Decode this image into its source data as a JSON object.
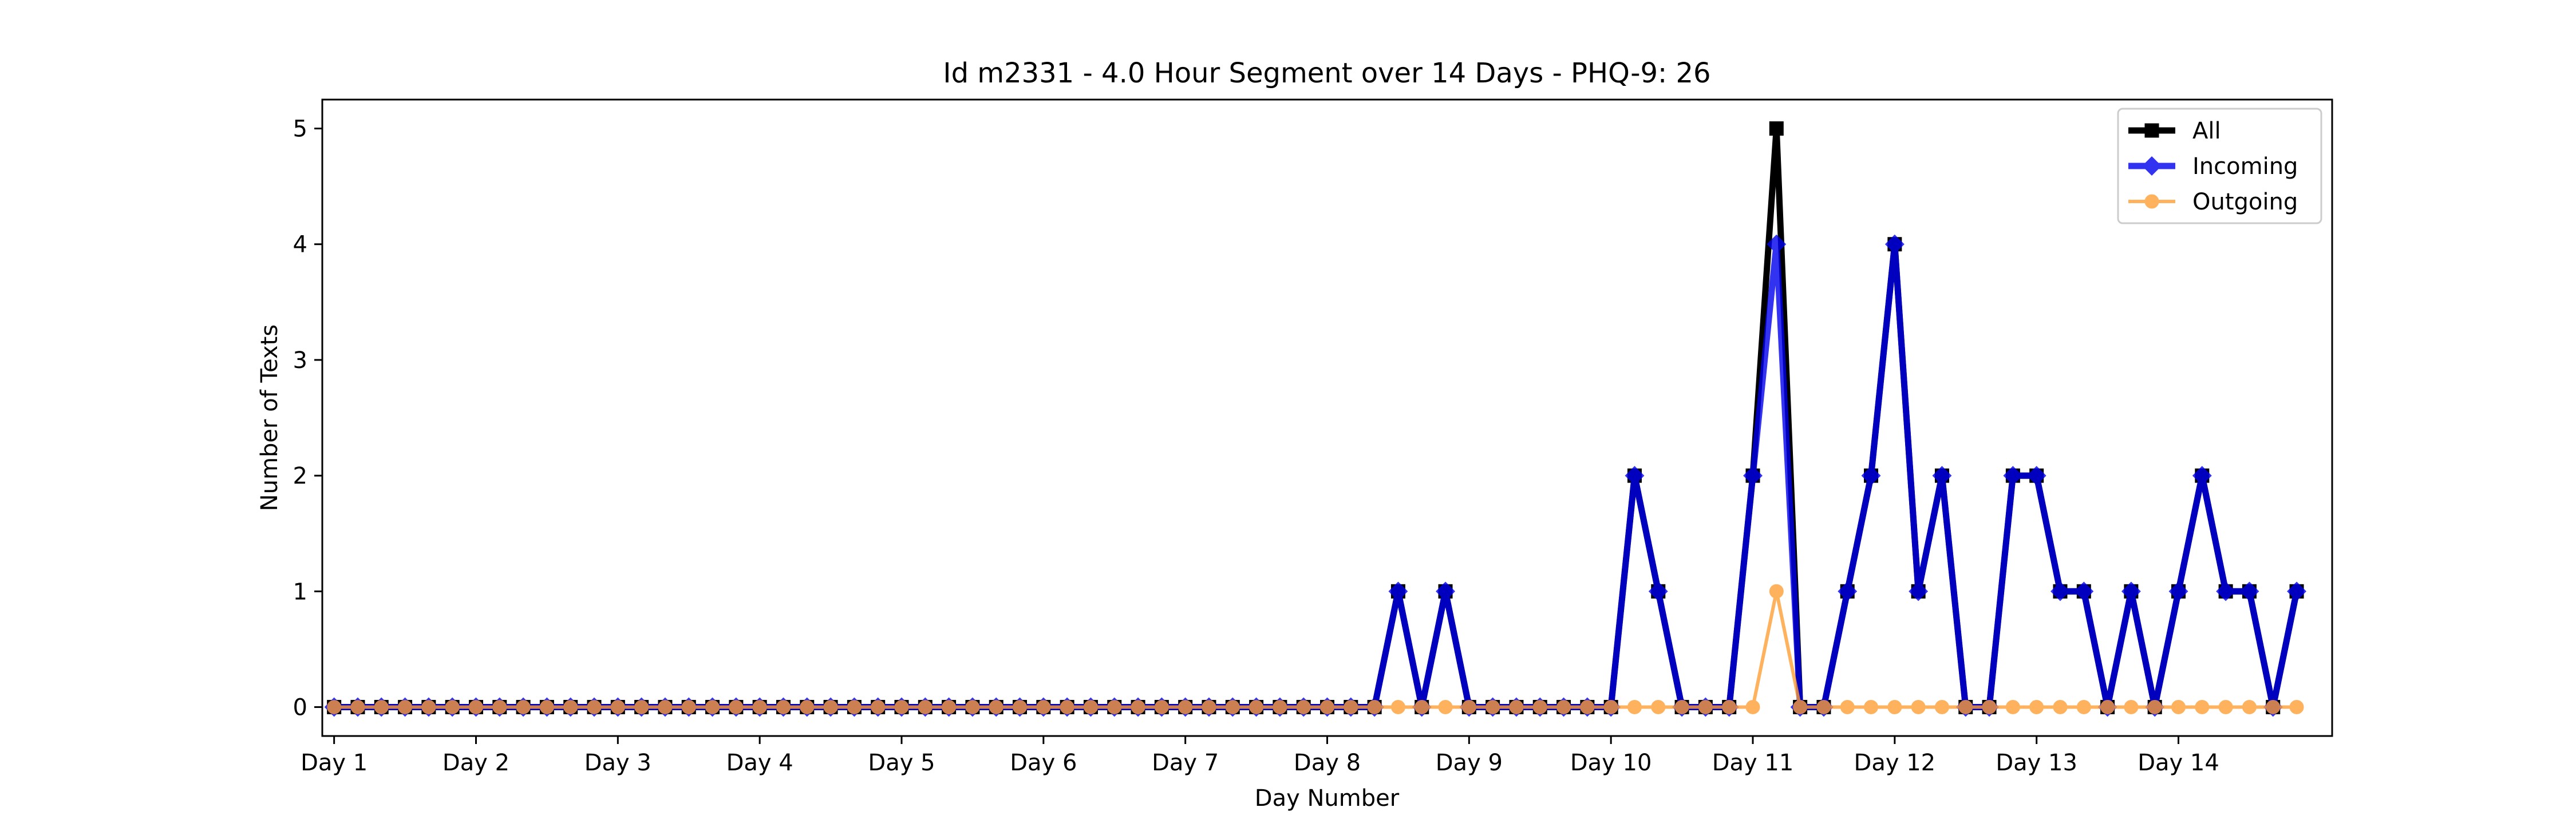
{
  "chart_data": {
    "type": "line",
    "title": "Id m2331 - 4.0 Hour Segment over 14 Days - PHQ-9: 26",
    "xlabel": "Day Number",
    "ylabel": "Number of Texts",
    "xlim": [
      -0.5,
      84.5
    ],
    "ylim": [
      -0.25,
      5.25
    ],
    "yticks": [
      0,
      1,
      2,
      3,
      4,
      5
    ],
    "xticks": [
      {
        "x": 0,
        "label": "Day 1"
      },
      {
        "x": 6,
        "label": "Day 2"
      },
      {
        "x": 12,
        "label": "Day 3"
      },
      {
        "x": 18,
        "label": "Day 4"
      },
      {
        "x": 24,
        "label": "Day 5"
      },
      {
        "x": 30,
        "label": "Day 6"
      },
      {
        "x": 36,
        "label": "Day 7"
      },
      {
        "x": 42,
        "label": "Day 8"
      },
      {
        "x": 48,
        "label": "Day 9"
      },
      {
        "x": 54,
        "label": "Day 10"
      },
      {
        "x": 60,
        "label": "Day 11"
      },
      {
        "x": 66,
        "label": "Day 12"
      },
      {
        "x": 72,
        "label": "Day 13"
      },
      {
        "x": 78,
        "label": "Day 14"
      }
    ],
    "grid": false,
    "legend_position": "top-right",
    "series": [
      {
        "name": "All",
        "color": "#000000",
        "marker": "square",
        "values": [
          0,
          0,
          0,
          0,
          0,
          0,
          0,
          0,
          0,
          0,
          0,
          0,
          0,
          0,
          0,
          0,
          0,
          0,
          0,
          0,
          0,
          0,
          0,
          0,
          0,
          0,
          0,
          0,
          0,
          0,
          0,
          0,
          0,
          0,
          0,
          0,
          0,
          0,
          0,
          0,
          0,
          0,
          0,
          0,
          0,
          1,
          0,
          1,
          0,
          0,
          0,
          0,
          0,
          0,
          0,
          2,
          1,
          0,
          0,
          0,
          2,
          5,
          0,
          0,
          1,
          2,
          4,
          1,
          2,
          0,
          0,
          2,
          2,
          1,
          1,
          0,
          1,
          0,
          1,
          2,
          1,
          1,
          0,
          1
        ]
      },
      {
        "name": "Incoming",
        "color": "#0000ee",
        "marker": "diamond",
        "values": [
          0,
          0,
          0,
          0,
          0,
          0,
          0,
          0,
          0,
          0,
          0,
          0,
          0,
          0,
          0,
          0,
          0,
          0,
          0,
          0,
          0,
          0,
          0,
          0,
          0,
          0,
          0,
          0,
          0,
          0,
          0,
          0,
          0,
          0,
          0,
          0,
          0,
          0,
          0,
          0,
          0,
          0,
          0,
          0,
          0,
          1,
          0,
          1,
          0,
          0,
          0,
          0,
          0,
          0,
          0,
          2,
          1,
          0,
          0,
          0,
          2,
          4,
          0,
          0,
          1,
          2,
          4,
          1,
          2,
          0,
          0,
          2,
          2,
          1,
          1,
          0,
          1,
          0,
          1,
          2,
          1,
          1,
          0,
          1
        ]
      },
      {
        "name": "Outgoing",
        "color": "#ff9f35",
        "marker": "circle",
        "values": [
          0,
          0,
          0,
          0,
          0,
          0,
          0,
          0,
          0,
          0,
          0,
          0,
          0,
          0,
          0,
          0,
          0,
          0,
          0,
          0,
          0,
          0,
          0,
          0,
          0,
          0,
          0,
          0,
          0,
          0,
          0,
          0,
          0,
          0,
          0,
          0,
          0,
          0,
          0,
          0,
          0,
          0,
          0,
          0,
          0,
          0,
          0,
          0,
          0,
          0,
          0,
          0,
          0,
          0,
          0,
          0,
          0,
          0,
          0,
          0,
          0,
          1,
          0,
          0,
          0,
          0,
          0,
          0,
          0,
          0,
          0,
          0,
          0,
          0,
          0,
          0,
          0,
          0,
          0,
          0,
          0,
          0,
          0,
          0
        ]
      }
    ]
  }
}
